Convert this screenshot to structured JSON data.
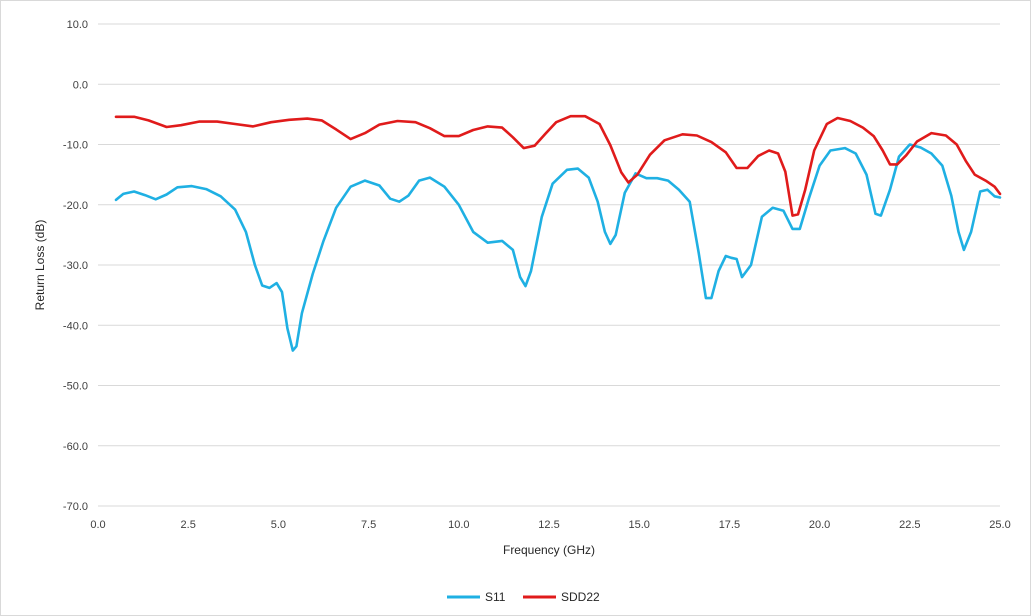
{
  "chart_data": {
    "type": "line",
    "title": "",
    "xlabel": "Frequency (GHz)",
    "ylabel": "Return Loss (dB)",
    "xlim": [
      0,
      25
    ],
    "ylim": [
      -70,
      10
    ],
    "x_ticks": [
      "0.0",
      "2.5",
      "5.0",
      "7.5",
      "10.0",
      "12.5",
      "15.0",
      "17.5",
      "20.0",
      "22.5",
      "25.0"
    ],
    "y_ticks": [
      "10.0",
      "0.0",
      "-10.0",
      "-20.0",
      "-30.0",
      "-40.0",
      "-50.0",
      "-60.0",
      "-70.0"
    ],
    "grid": "horizontal",
    "legend_position": "bottom",
    "series": [
      {
        "name": "S11",
        "color": "#1fb0e3",
        "points": [
          [
            0.5,
            -19.2
          ],
          [
            0.7,
            -18.2
          ],
          [
            1.0,
            -17.8
          ],
          [
            1.3,
            -18.4
          ],
          [
            1.6,
            -19.1
          ],
          [
            1.9,
            -18.3
          ],
          [
            2.2,
            -17.1
          ],
          [
            2.6,
            -16.9
          ],
          [
            3.0,
            -17.4
          ],
          [
            3.4,
            -18.6
          ],
          [
            3.8,
            -20.8
          ],
          [
            4.1,
            -24.5
          ],
          [
            4.35,
            -30.0
          ],
          [
            4.55,
            -33.4
          ],
          [
            4.75,
            -33.8
          ],
          [
            4.95,
            -33.0
          ],
          [
            5.1,
            -34.5
          ],
          [
            5.25,
            -40.5
          ],
          [
            5.4,
            -44.2
          ],
          [
            5.5,
            -43.5
          ],
          [
            5.65,
            -38.0
          ],
          [
            5.95,
            -31.5
          ],
          [
            6.25,
            -26.0
          ],
          [
            6.6,
            -20.5
          ],
          [
            7.0,
            -17.0
          ],
          [
            7.4,
            -16.0
          ],
          [
            7.8,
            -16.8
          ],
          [
            8.1,
            -19.0
          ],
          [
            8.35,
            -19.5
          ],
          [
            8.6,
            -18.5
          ],
          [
            8.9,
            -16.0
          ],
          [
            9.2,
            -15.5
          ],
          [
            9.6,
            -17.0
          ],
          [
            10.0,
            -20.0
          ],
          [
            10.4,
            -24.5
          ],
          [
            10.8,
            -26.3
          ],
          [
            11.2,
            -26.0
          ],
          [
            11.5,
            -27.5
          ],
          [
            11.7,
            -32.0
          ],
          [
            11.85,
            -33.5
          ],
          [
            12.0,
            -31.0
          ],
          [
            12.3,
            -22.0
          ],
          [
            12.6,
            -16.5
          ],
          [
            13.0,
            -14.2
          ],
          [
            13.3,
            -14.0
          ],
          [
            13.6,
            -15.5
          ],
          [
            13.85,
            -19.5
          ],
          [
            14.05,
            -24.5
          ],
          [
            14.2,
            -26.5
          ],
          [
            14.35,
            -25.0
          ],
          [
            14.6,
            -18.0
          ],
          [
            14.9,
            -14.8
          ],
          [
            15.2,
            -15.6
          ],
          [
            15.5,
            -15.6
          ],
          [
            15.8,
            -16.0
          ],
          [
            16.1,
            -17.5
          ],
          [
            16.4,
            -19.5
          ],
          [
            16.65,
            -28.0
          ],
          [
            16.85,
            -35.5
          ],
          [
            17.0,
            -35.5
          ],
          [
            17.2,
            -31.0
          ],
          [
            17.4,
            -28.5
          ],
          [
            17.55,
            -28.8
          ],
          [
            17.7,
            -29.0
          ],
          [
            17.85,
            -32.0
          ],
          [
            18.1,
            -30.0
          ],
          [
            18.4,
            -22.0
          ],
          [
            18.7,
            -20.5
          ],
          [
            19.0,
            -21.0
          ],
          [
            19.25,
            -24.0
          ],
          [
            19.45,
            -24.0
          ],
          [
            19.7,
            -19.0
          ],
          [
            20.0,
            -13.5
          ],
          [
            20.3,
            -11.0
          ],
          [
            20.7,
            -10.6
          ],
          [
            21.0,
            -11.5
          ],
          [
            21.3,
            -15.0
          ],
          [
            21.55,
            -21.5
          ],
          [
            21.7,
            -21.8
          ],
          [
            21.95,
            -17.5
          ],
          [
            22.2,
            -12.0
          ],
          [
            22.5,
            -10.0
          ],
          [
            22.8,
            -10.5
          ],
          [
            23.1,
            -11.5
          ],
          [
            23.4,
            -13.5
          ],
          [
            23.65,
            -18.5
          ],
          [
            23.85,
            -24.5
          ],
          [
            24.0,
            -27.5
          ],
          [
            24.2,
            -24.5
          ],
          [
            24.45,
            -17.8
          ],
          [
            24.65,
            -17.5
          ],
          [
            24.85,
            -18.6
          ],
          [
            25.0,
            -18.8
          ]
        ]
      },
      {
        "name": "SDD22",
        "color": "#e01b1b",
        "points": [
          [
            0.5,
            -5.4
          ],
          [
            1.0,
            -5.4
          ],
          [
            1.4,
            -6.0
          ],
          [
            1.9,
            -7.1
          ],
          [
            2.3,
            -6.8
          ],
          [
            2.8,
            -6.2
          ],
          [
            3.3,
            -6.2
          ],
          [
            3.8,
            -6.6
          ],
          [
            4.3,
            -7.0
          ],
          [
            4.8,
            -6.3
          ],
          [
            5.3,
            -5.9
          ],
          [
            5.8,
            -5.7
          ],
          [
            6.2,
            -6.0
          ],
          [
            6.6,
            -7.5
          ],
          [
            7.0,
            -9.1
          ],
          [
            7.4,
            -8.1
          ],
          [
            7.8,
            -6.7
          ],
          [
            8.3,
            -6.1
          ],
          [
            8.8,
            -6.3
          ],
          [
            9.2,
            -7.3
          ],
          [
            9.6,
            -8.6
          ],
          [
            10.0,
            -8.6
          ],
          [
            10.4,
            -7.6
          ],
          [
            10.8,
            -7.0
          ],
          [
            11.2,
            -7.2
          ],
          [
            11.5,
            -8.8
          ],
          [
            11.8,
            -10.6
          ],
          [
            12.1,
            -10.2
          ],
          [
            12.4,
            -8.2
          ],
          [
            12.7,
            -6.3
          ],
          [
            13.1,
            -5.3
          ],
          [
            13.5,
            -5.3
          ],
          [
            13.9,
            -6.6
          ],
          [
            14.2,
            -10.1
          ],
          [
            14.5,
            -14.6
          ],
          [
            14.7,
            -16.3
          ],
          [
            14.95,
            -15.0
          ],
          [
            15.3,
            -11.7
          ],
          [
            15.7,
            -9.3
          ],
          [
            16.2,
            -8.3
          ],
          [
            16.6,
            -8.5
          ],
          [
            17.0,
            -9.6
          ],
          [
            17.4,
            -11.3
          ],
          [
            17.7,
            -13.9
          ],
          [
            18.0,
            -13.9
          ],
          [
            18.3,
            -11.9
          ],
          [
            18.6,
            -11.0
          ],
          [
            18.85,
            -11.5
          ],
          [
            19.05,
            -14.5
          ],
          [
            19.25,
            -21.8
          ],
          [
            19.4,
            -21.6
          ],
          [
            19.6,
            -17.5
          ],
          [
            19.85,
            -11.0
          ],
          [
            20.2,
            -6.6
          ],
          [
            20.5,
            -5.6
          ],
          [
            20.85,
            -6.1
          ],
          [
            21.2,
            -7.2
          ],
          [
            21.5,
            -8.6
          ],
          [
            21.75,
            -11.0
          ],
          [
            21.95,
            -13.3
          ],
          [
            22.15,
            -13.3
          ],
          [
            22.4,
            -11.8
          ],
          [
            22.7,
            -9.5
          ],
          [
            23.1,
            -8.1
          ],
          [
            23.5,
            -8.5
          ],
          [
            23.8,
            -10.0
          ],
          [
            24.05,
            -12.7
          ],
          [
            24.3,
            -15.0
          ],
          [
            24.6,
            -16.0
          ],
          [
            24.85,
            -17.0
          ],
          [
            25.0,
            -18.2
          ]
        ]
      }
    ]
  }
}
